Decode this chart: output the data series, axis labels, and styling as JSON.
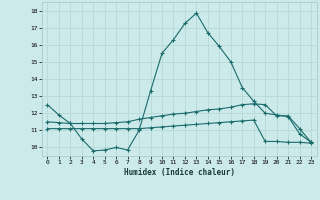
{
  "xlabel": "Humidex (Indice chaleur)",
  "xlim": [
    -0.5,
    23.5
  ],
  "ylim": [
    9.5,
    18.5
  ],
  "xticks": [
    0,
    1,
    2,
    3,
    4,
    5,
    6,
    7,
    8,
    9,
    10,
    11,
    12,
    13,
    14,
    15,
    16,
    17,
    18,
    19,
    20,
    21,
    22,
    23
  ],
  "yticks": [
    10,
    11,
    12,
    13,
    14,
    15,
    16,
    17,
    18
  ],
  "line_color": "#1a6b6b",
  "bg_color": "#cceaea",
  "grid_color": "#b8d8d8",
  "line1_x": [
    0,
    1,
    2,
    3,
    4,
    5,
    6,
    7,
    8,
    9,
    10,
    11,
    12,
    13,
    14,
    15,
    16,
    17,
    18,
    19,
    20,
    21,
    22,
    23
  ],
  "line1_y": [
    12.5,
    11.9,
    11.4,
    10.5,
    9.8,
    9.85,
    10.0,
    9.85,
    11.0,
    13.3,
    15.5,
    16.3,
    17.25,
    17.85,
    16.7,
    15.9,
    15.0,
    13.5,
    12.7,
    12.0,
    11.9,
    11.8,
    10.8,
    10.3
  ],
  "line2_x": [
    0,
    1,
    2,
    3,
    4,
    5,
    6,
    7,
    8,
    9,
    10,
    11,
    12,
    13,
    14,
    15,
    16,
    17,
    18,
    19,
    20,
    21,
    22,
    23
  ],
  "line2_y": [
    11.5,
    11.45,
    11.4,
    11.4,
    11.4,
    11.4,
    11.45,
    11.5,
    11.65,
    11.75,
    11.85,
    11.95,
    12.0,
    12.1,
    12.2,
    12.25,
    12.35,
    12.5,
    12.55,
    12.5,
    11.85,
    11.85,
    11.1,
    10.3
  ],
  "line3_x": [
    0,
    1,
    2,
    3,
    4,
    5,
    6,
    7,
    8,
    9,
    10,
    11,
    12,
    13,
    14,
    15,
    16,
    17,
    18,
    19,
    20,
    21,
    22,
    23
  ],
  "line3_y": [
    11.1,
    11.1,
    11.1,
    11.1,
    11.1,
    11.1,
    11.1,
    11.1,
    11.1,
    11.15,
    11.2,
    11.25,
    11.3,
    11.35,
    11.4,
    11.45,
    11.5,
    11.55,
    11.6,
    10.35,
    10.35,
    10.3,
    10.3,
    10.25
  ]
}
